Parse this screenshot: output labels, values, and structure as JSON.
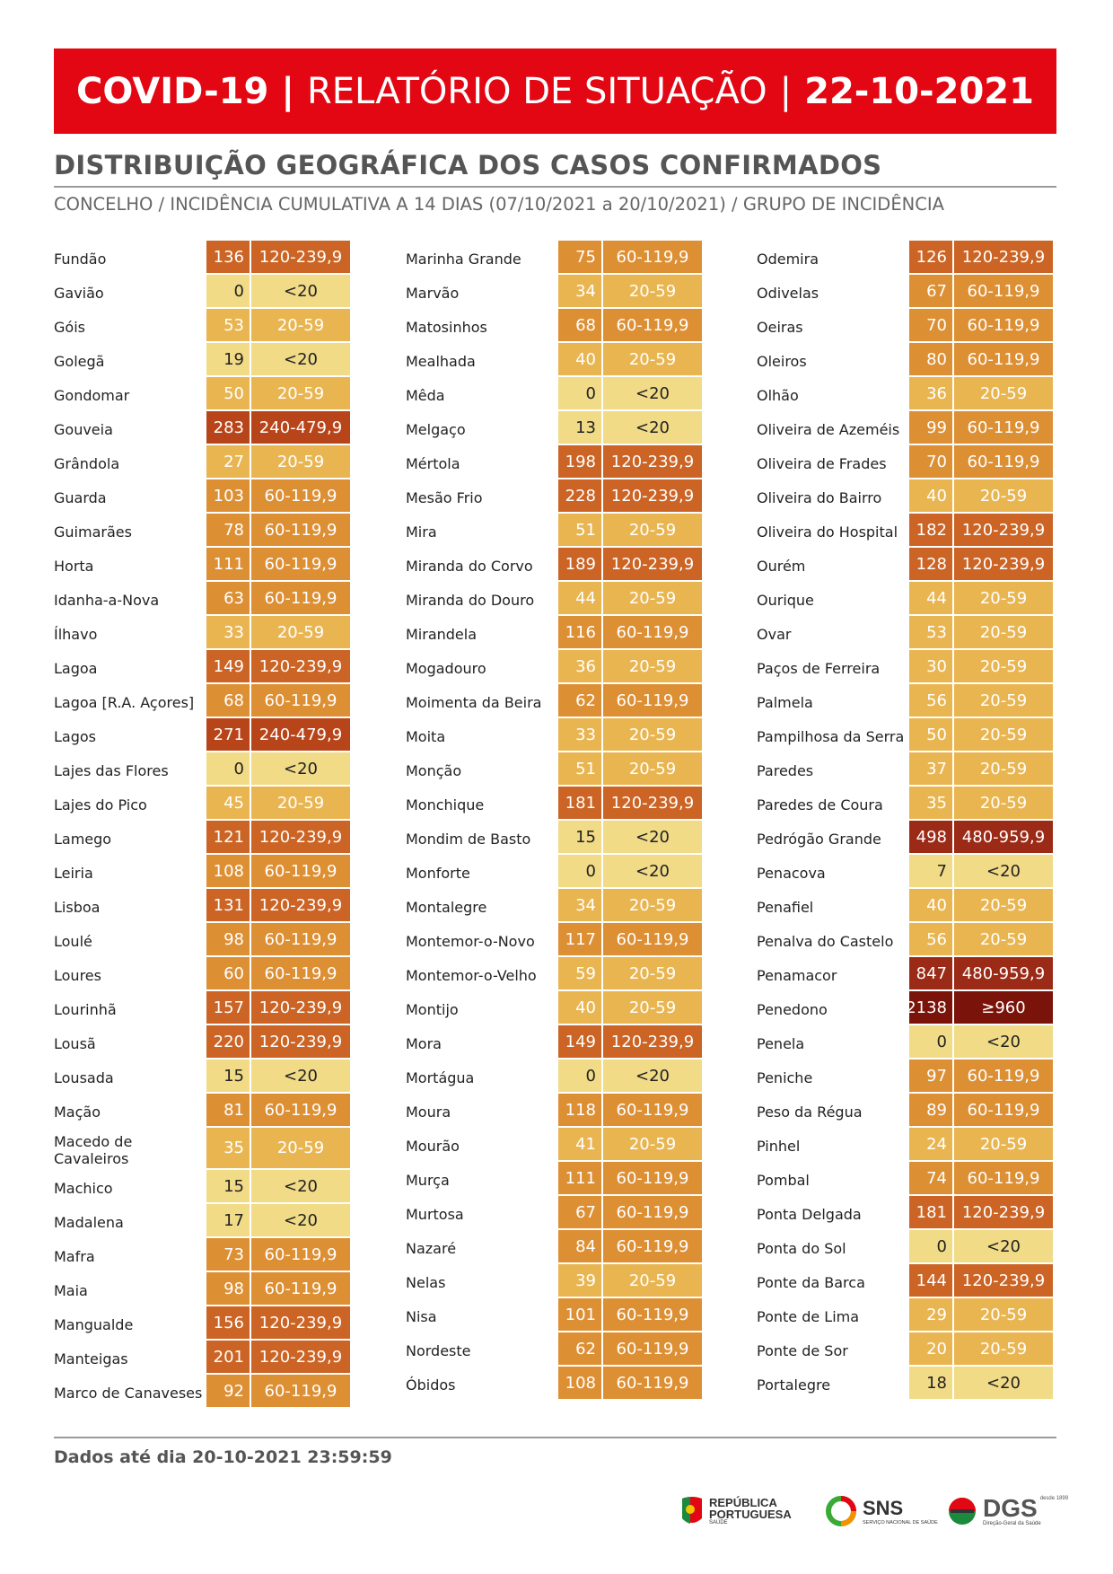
{
  "header": {
    "title_bold": "COVID-19",
    "separator": "|",
    "title_main": "RELATÓRIO DE SITUAÇÃO",
    "date": "22-10-2021"
  },
  "section": {
    "title": "DISTRIBUIÇÃO GEOGRÁFICA DOS CASOS CONFIRMADOS",
    "subtitle": "CONCELHO / INCIDÊNCIA CUMULATIVA A 14 DIAS (07/10/2021 a 20/10/2021) / GRUPO DE INCIDÊNCIA"
  },
  "group_colors": {
    "<20": "#f1db87",
    "20-59": "#e9b551",
    "60-119,9": "#dd8f34",
    "120-239,9": "#cb6424",
    "240-479,9": "#b84519",
    "480-959,9": "#9b2a17",
    "≥960": "#7a1309"
  },
  "group_text_colors": {
    "<20": "#222222",
    "20-59": "#ffffff",
    "60-119,9": "#ffffff",
    "120-239,9": "#ffffff",
    "240-479,9": "#ffffff",
    "480-959,9": "#ffffff",
    "≥960": "#ffffff"
  },
  "columns": [
    [
      {
        "name": "Fundão",
        "value": "136",
        "group": "120-239,9"
      },
      {
        "name": "Gavião",
        "value": "0",
        "group": "<20"
      },
      {
        "name": "Góis",
        "value": "53",
        "group": "20-59"
      },
      {
        "name": "Golegã",
        "value": "19",
        "group": "<20"
      },
      {
        "name": "Gondomar",
        "value": "50",
        "group": "20-59"
      },
      {
        "name": "Gouveia",
        "value": "283",
        "group": "240-479,9"
      },
      {
        "name": "Grândola",
        "value": "27",
        "group": "20-59"
      },
      {
        "name": "Guarda",
        "value": "103",
        "group": "60-119,9"
      },
      {
        "name": "Guimarães",
        "value": "78",
        "group": "60-119,9"
      },
      {
        "name": "Horta",
        "value": "111",
        "group": "60-119,9"
      },
      {
        "name": "Idanha-a-Nova",
        "value": "63",
        "group": "60-119,9"
      },
      {
        "name": "Ílhavo",
        "value": "33",
        "group": "20-59"
      },
      {
        "name": "Lagoa",
        "value": "149",
        "group": "120-239,9"
      },
      {
        "name": "Lagoa [R.A. Açores]",
        "value": "68",
        "group": "60-119,9"
      },
      {
        "name": "Lagos",
        "value": "271",
        "group": "240-479,9"
      },
      {
        "name": "Lajes das Flores",
        "value": "0",
        "group": "<20"
      },
      {
        "name": "Lajes do Pico",
        "value": "45",
        "group": "20-59"
      },
      {
        "name": "Lamego",
        "value": "121",
        "group": "120-239,9"
      },
      {
        "name": "Leiria",
        "value": "108",
        "group": "60-119,9"
      },
      {
        "name": "Lisboa",
        "value": "131",
        "group": "120-239,9"
      },
      {
        "name": "Loulé",
        "value": "98",
        "group": "60-119,9"
      },
      {
        "name": "Loures",
        "value": "60",
        "group": "60-119,9"
      },
      {
        "name": "Lourinhã",
        "value": "157",
        "group": "120-239,9"
      },
      {
        "name": "Lousã",
        "value": "220",
        "group": "120-239,9"
      },
      {
        "name": "Lousada",
        "value": "15",
        "group": "<20"
      },
      {
        "name": "Mação",
        "value": "81",
        "group": "60-119,9"
      },
      {
        "name": "Macedo de Cavaleiros",
        "value": "35",
        "group": "20-59",
        "tall": true
      },
      {
        "name": "Machico",
        "value": "15",
        "group": "<20"
      },
      {
        "name": "Madalena",
        "value": "17",
        "group": "<20"
      },
      {
        "name": "Mafra",
        "value": "73",
        "group": "60-119,9"
      },
      {
        "name": "Maia",
        "value": "98",
        "group": "60-119,9"
      },
      {
        "name": "Mangualde",
        "value": "156",
        "group": "120-239,9"
      },
      {
        "name": "Manteigas",
        "value": "201",
        "group": "120-239,9"
      },
      {
        "name": "Marco de Canaveses",
        "value": "92",
        "group": "60-119,9"
      }
    ],
    [
      {
        "name": "Marinha Grande",
        "value": "75",
        "group": "60-119,9"
      },
      {
        "name": "Marvão",
        "value": "34",
        "group": "20-59"
      },
      {
        "name": "Matosinhos",
        "value": "68",
        "group": "60-119,9"
      },
      {
        "name": "Mealhada",
        "value": "40",
        "group": "20-59"
      },
      {
        "name": "Mêda",
        "value": "0",
        "group": "<20"
      },
      {
        "name": "Melgaço",
        "value": "13",
        "group": "<20"
      },
      {
        "name": "Mértola",
        "value": "198",
        "group": "120-239,9"
      },
      {
        "name": "Mesão Frio",
        "value": "228",
        "group": "120-239,9"
      },
      {
        "name": "Mira",
        "value": "51",
        "group": "20-59"
      },
      {
        "name": "Miranda do Corvo",
        "value": "189",
        "group": "120-239,9"
      },
      {
        "name": "Miranda do Douro",
        "value": "44",
        "group": "20-59"
      },
      {
        "name": "Mirandela",
        "value": "116",
        "group": "60-119,9"
      },
      {
        "name": "Mogadouro",
        "value": "36",
        "group": "20-59"
      },
      {
        "name": "Moimenta da Beira",
        "value": "62",
        "group": "60-119,9"
      },
      {
        "name": "Moita",
        "value": "33",
        "group": "20-59"
      },
      {
        "name": "Monção",
        "value": "51",
        "group": "20-59"
      },
      {
        "name": "Monchique",
        "value": "181",
        "group": "120-239,9"
      },
      {
        "name": "Mondim de Basto",
        "value": "15",
        "group": "<20"
      },
      {
        "name": "Monforte",
        "value": "0",
        "group": "<20"
      },
      {
        "name": "Montalegre",
        "value": "34",
        "group": "20-59"
      },
      {
        "name": "Montemor-o-Novo",
        "value": "117",
        "group": "60-119,9"
      },
      {
        "name": "Montemor-o-Velho",
        "value": "59",
        "group": "20-59"
      },
      {
        "name": "Montijo",
        "value": "40",
        "group": "20-59"
      },
      {
        "name": "Mora",
        "value": "149",
        "group": "120-239,9"
      },
      {
        "name": "Mortágua",
        "value": "0",
        "group": "<20"
      },
      {
        "name": "Moura",
        "value": "118",
        "group": "60-119,9"
      },
      {
        "name": "Mourão",
        "value": "41",
        "group": "20-59"
      },
      {
        "name": "Murça",
        "value": "111",
        "group": "60-119,9"
      },
      {
        "name": "Murtosa",
        "value": "67",
        "group": "60-119,9"
      },
      {
        "name": "Nazaré",
        "value": "84",
        "group": "60-119,9"
      },
      {
        "name": "Nelas",
        "value": "39",
        "group": "20-59"
      },
      {
        "name": "Nisa",
        "value": "101",
        "group": "60-119,9"
      },
      {
        "name": "Nordeste",
        "value": "62",
        "group": "60-119,9"
      },
      {
        "name": "Óbidos",
        "value": "108",
        "group": "60-119,9"
      }
    ],
    [
      {
        "name": "Odemira",
        "value": "126",
        "group": "120-239,9"
      },
      {
        "name": "Odivelas",
        "value": "67",
        "group": "60-119,9"
      },
      {
        "name": "Oeiras",
        "value": "70",
        "group": "60-119,9"
      },
      {
        "name": "Oleiros",
        "value": "80",
        "group": "60-119,9"
      },
      {
        "name": "Olhão",
        "value": "36",
        "group": "20-59"
      },
      {
        "name": "Oliveira de Azeméis",
        "value": "99",
        "group": "60-119,9"
      },
      {
        "name": "Oliveira de Frades",
        "value": "70",
        "group": "60-119,9"
      },
      {
        "name": "Oliveira do Bairro",
        "value": "40",
        "group": "20-59"
      },
      {
        "name": "Oliveira do Hospital",
        "value": "182",
        "group": "120-239,9"
      },
      {
        "name": "Ourém",
        "value": "128",
        "group": "120-239,9"
      },
      {
        "name": "Ourique",
        "value": "44",
        "group": "20-59"
      },
      {
        "name": "Ovar",
        "value": "53",
        "group": "20-59"
      },
      {
        "name": "Paços de Ferreira",
        "value": "30",
        "group": "20-59"
      },
      {
        "name": "Palmela",
        "value": "56",
        "group": "20-59"
      },
      {
        "name": "Pampilhosa da Serra",
        "value": "50",
        "group": "20-59"
      },
      {
        "name": "Paredes",
        "value": "37",
        "group": "20-59"
      },
      {
        "name": "Paredes de Coura",
        "value": "35",
        "group": "20-59"
      },
      {
        "name": "Pedrógão Grande",
        "value": "498",
        "group": "480-959,9"
      },
      {
        "name": "Penacova",
        "value": "7",
        "group": "<20"
      },
      {
        "name": "Penafiel",
        "value": "40",
        "group": "20-59"
      },
      {
        "name": "Penalva do Castelo",
        "value": "56",
        "group": "20-59"
      },
      {
        "name": "Penamacor",
        "value": "847",
        "group": "480-959,9"
      },
      {
        "name": "Penedono",
        "value": "2138",
        "group": "≥960"
      },
      {
        "name": "Penela",
        "value": "0",
        "group": "<20"
      },
      {
        "name": "Peniche",
        "value": "97",
        "group": "60-119,9"
      },
      {
        "name": "Peso da Régua",
        "value": "89",
        "group": "60-119,9"
      },
      {
        "name": "Pinhel",
        "value": "24",
        "group": "20-59"
      },
      {
        "name": "Pombal",
        "value": "74",
        "group": "60-119,9"
      },
      {
        "name": "Ponta Delgada",
        "value": "181",
        "group": "120-239,9"
      },
      {
        "name": "Ponta do Sol",
        "value": "0",
        "group": "<20"
      },
      {
        "name": "Ponte da Barca",
        "value": "144",
        "group": "120-239,9"
      },
      {
        "name": "Ponte de Lima",
        "value": "29",
        "group": "20-59"
      },
      {
        "name": "Ponte de Sor",
        "value": "20",
        "group": "20-59"
      },
      {
        "name": "Portalegre",
        "value": "18",
        "group": "<20"
      }
    ]
  ],
  "footer": {
    "note": "Dados até dia 20-10-2021 23:59:59"
  },
  "logos": {
    "republica_line1": "REPÚBLICA",
    "republica_line2": "PORTUGUESA",
    "republica_line3": "SAÚDE",
    "sns": "SNS",
    "sns_sub": "SERVIÇO NACIONAL DE SAÚDE",
    "dgs": "DGS",
    "dgs_since": "desde 1899",
    "dgs_sub": "Direção-Geral da Saúde"
  }
}
